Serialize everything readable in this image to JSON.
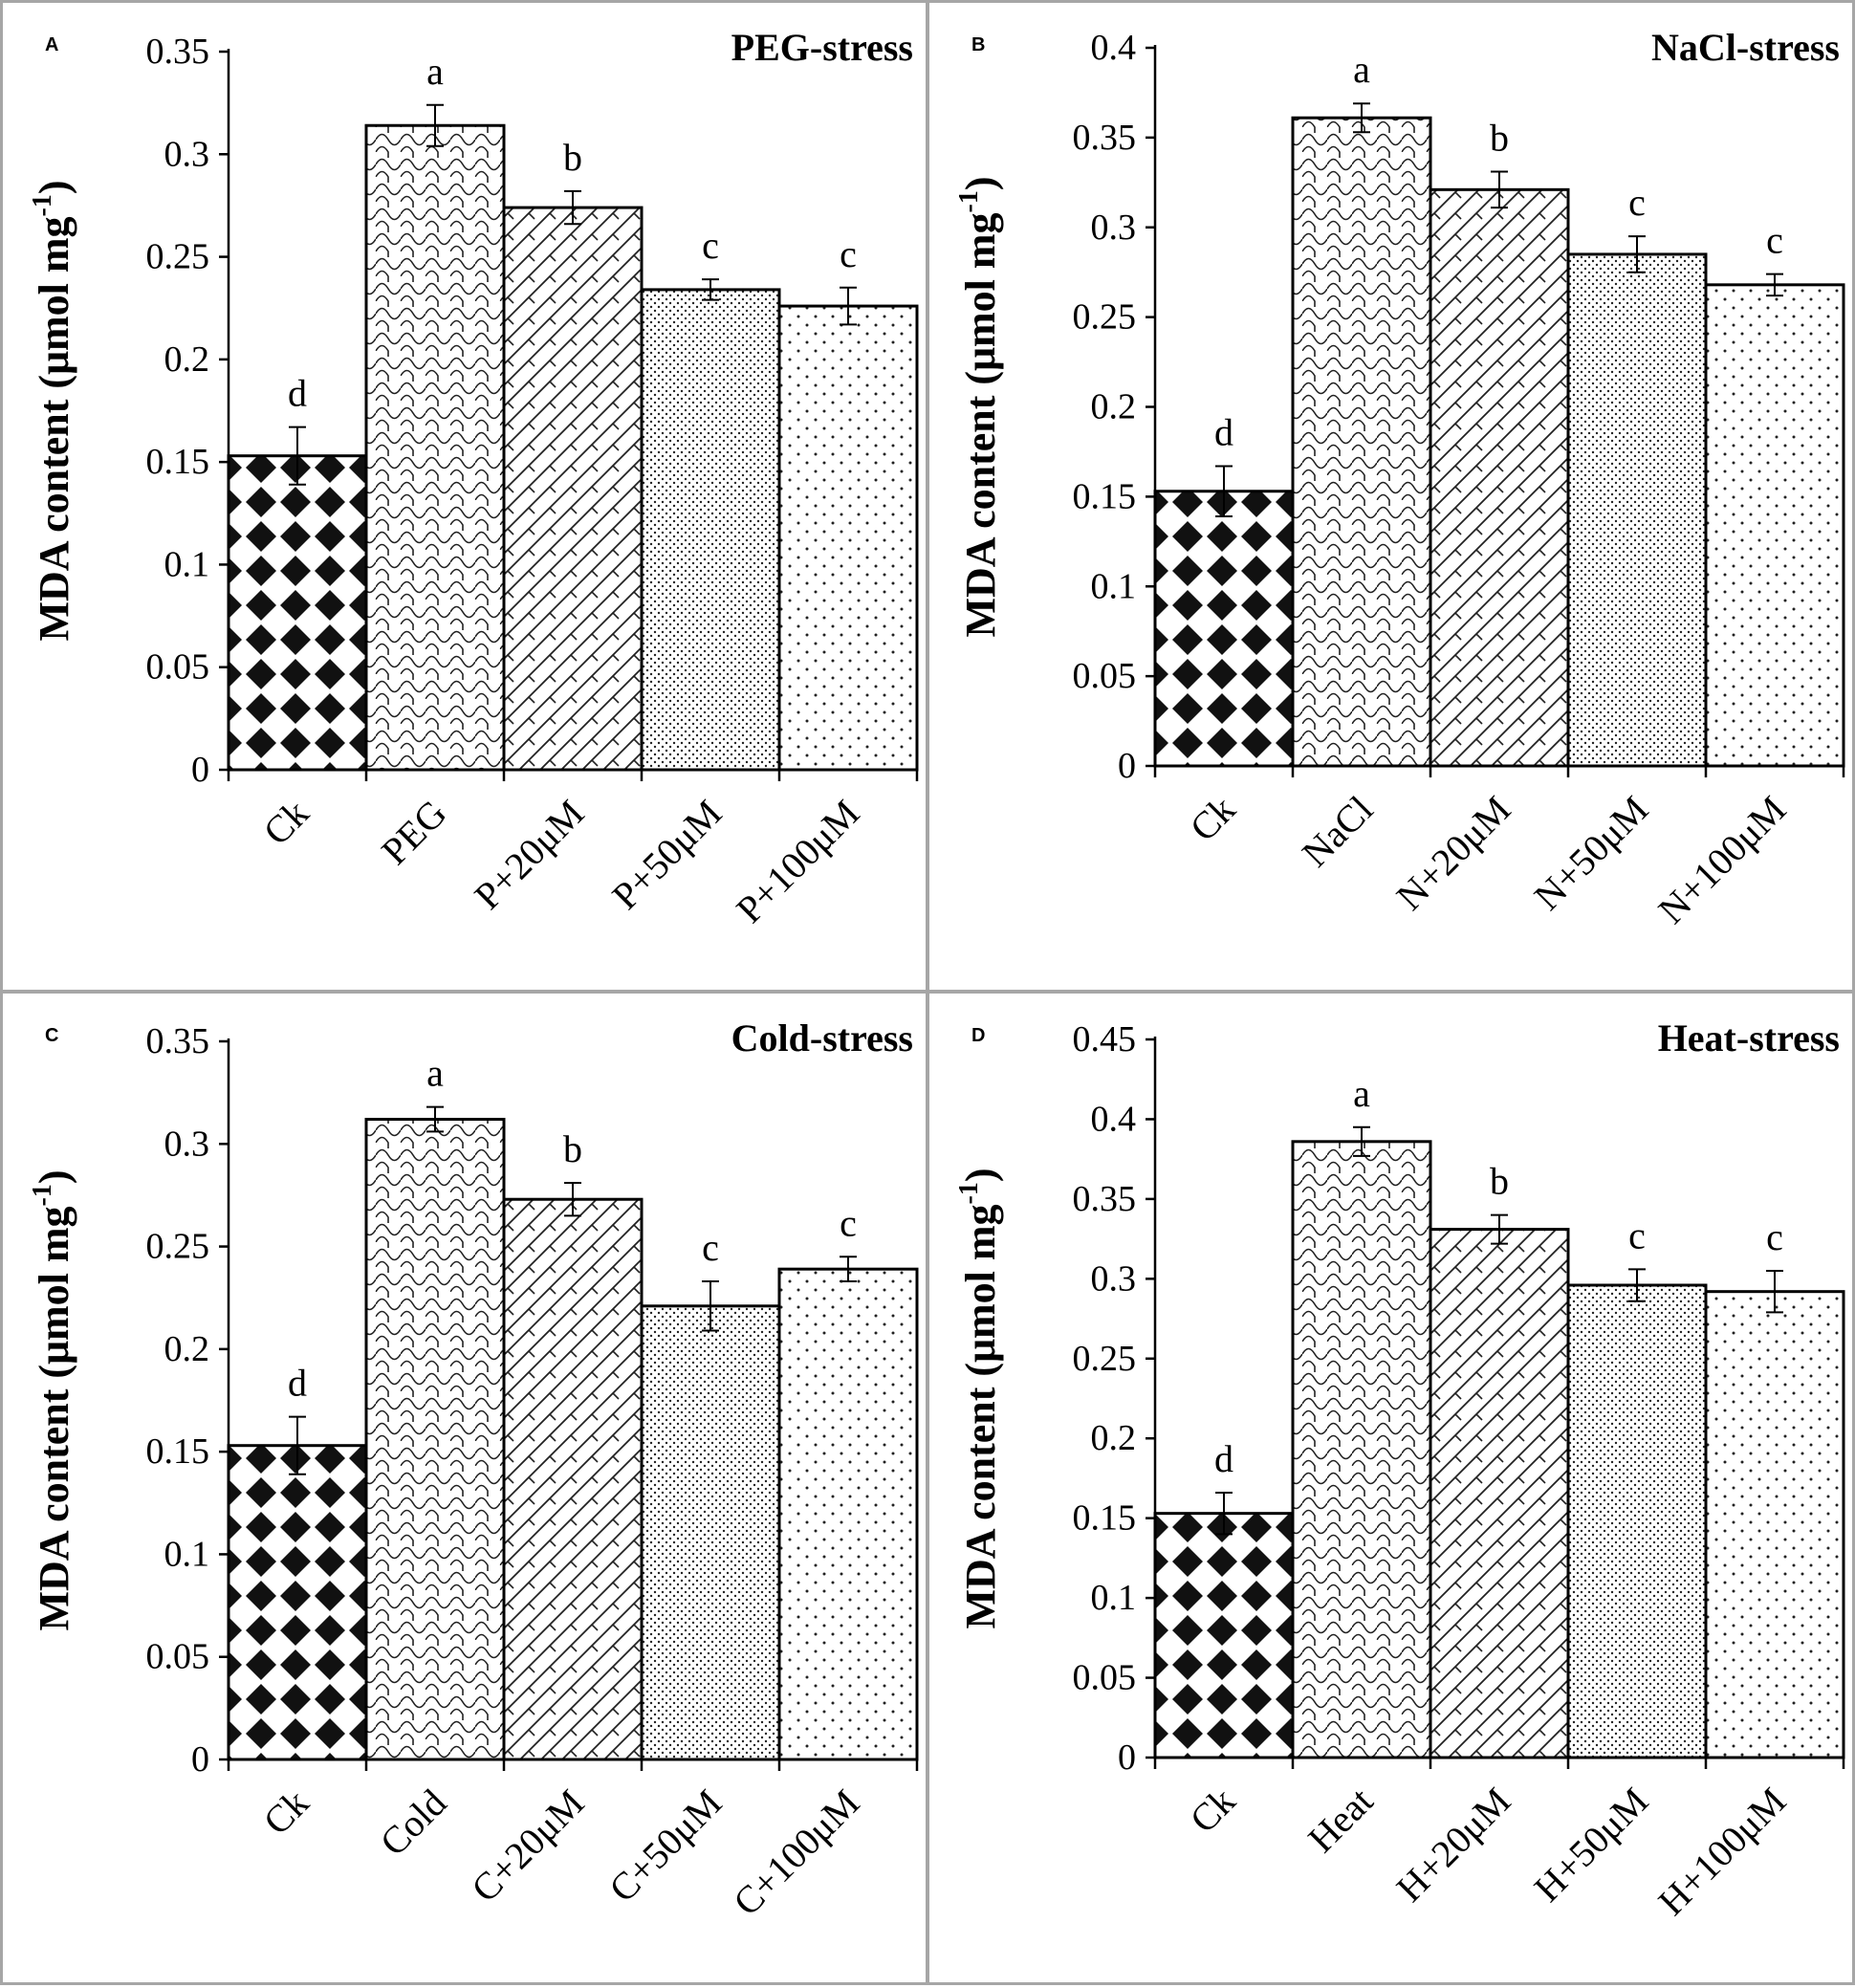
{
  "chart_data": [
    {
      "type": "bar",
      "panel_letter": "A",
      "title": "PEG-stress",
      "ylabel_main": "MDA content (μmol mg",
      "ylabel_sup": "-1",
      "ylabel_close": ")",
      "categories": [
        "Ck",
        "PEG",
        "P+20μM",
        "P+50μM",
        "P+100μM"
      ],
      "values": [
        0.153,
        0.314,
        0.274,
        0.234,
        0.226
      ],
      "errors": [
        0.014,
        0.01,
        0.008,
        0.005,
        0.009
      ],
      "letters": [
        "d",
        "a",
        "b",
        "c",
        "c"
      ],
      "ylim": [
        0,
        0.35
      ],
      "yticks": [
        "0",
        "0.05",
        "0.1",
        "0.15",
        "0.2",
        "0.25",
        "0.3",
        "0.35"
      ],
      "patterns": [
        "diamond",
        "wave",
        "diag",
        "fine-dot",
        "sparse-dot"
      ]
    },
    {
      "type": "bar",
      "panel_letter": "B",
      "title": "NaCl-stress",
      "ylabel_main": "MDA content (μmol mg",
      "ylabel_sup": "-1",
      "ylabel_close": ")",
      "categories": [
        "Ck",
        "NaCl",
        "N+20μM",
        "N+50μM",
        "N+100μM"
      ],
      "values": [
        0.153,
        0.361,
        0.321,
        0.285,
        0.268
      ],
      "errors": [
        0.014,
        0.008,
        0.01,
        0.01,
        0.006
      ],
      "letters": [
        "d",
        "a",
        "b",
        "c",
        "c"
      ],
      "ylim": [
        0,
        0.4
      ],
      "yticks": [
        "0",
        "0.05",
        "0.1",
        "0.15",
        "0.2",
        "0.25",
        "0.3",
        "0.35",
        "0.4"
      ],
      "patterns": [
        "diamond",
        "wave",
        "diag",
        "fine-dot",
        "sparse-dot"
      ]
    },
    {
      "type": "bar",
      "panel_letter": "C",
      "title": "Cold-stress",
      "ylabel_main": "MDA content (μmol mg",
      "ylabel_sup": "-1",
      "ylabel_close": ")",
      "categories": [
        "Ck",
        "Cold",
        "C+20μM",
        "C+50μM",
        "C+100μM"
      ],
      "values": [
        0.153,
        0.312,
        0.273,
        0.221,
        0.239
      ],
      "errors": [
        0.014,
        0.006,
        0.008,
        0.012,
        0.006
      ],
      "letters": [
        "d",
        "a",
        "b",
        "c",
        "c"
      ],
      "ylim": [
        0,
        0.35
      ],
      "yticks": [
        "0",
        "0.05",
        "0.1",
        "0.15",
        "0.2",
        "0.25",
        "0.3",
        "0.35"
      ],
      "patterns": [
        "diamond",
        "wave",
        "diag",
        "fine-dot",
        "sparse-dot"
      ]
    },
    {
      "type": "bar",
      "panel_letter": "D",
      "title": "Heat-stress",
      "ylabel_main": "MDA content (μmol mg",
      "ylabel_sup": "-1",
      "ylabel_close": ")",
      "categories": [
        "Ck",
        "Heat",
        "H+20μM",
        "H+50μM",
        "H+100μM"
      ],
      "values": [
        0.153,
        0.386,
        0.331,
        0.296,
        0.292
      ],
      "errors": [
        0.013,
        0.009,
        0.009,
        0.01,
        0.013
      ],
      "letters": [
        "d",
        "a",
        "b",
        "c",
        "c"
      ],
      "ylim": [
        0,
        0.45
      ],
      "yticks": [
        "0",
        "0.05",
        "0.1",
        "0.15",
        "0.2",
        "0.25",
        "0.3",
        "0.35",
        "0.4",
        "0.45"
      ],
      "patterns": [
        "diamond",
        "wave",
        "diag",
        "fine-dot",
        "sparse-dot"
      ]
    }
  ]
}
